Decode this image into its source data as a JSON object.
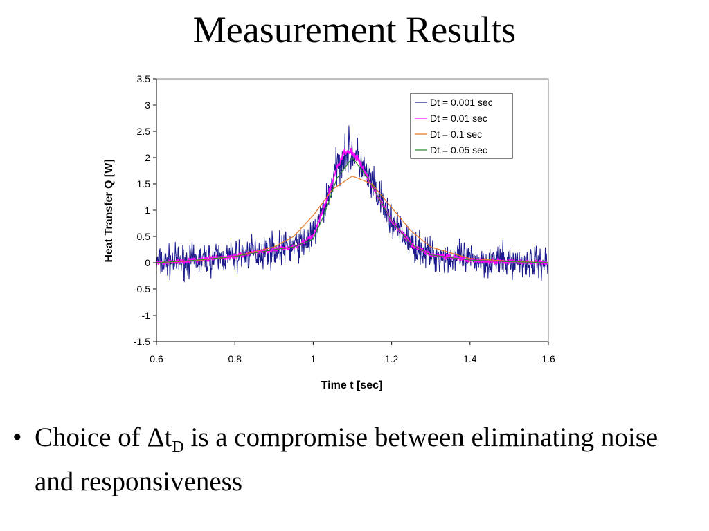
{
  "slide": {
    "title": "Measurement Results",
    "bullet": {
      "marker": "•",
      "pre": "Choice of ",
      "symbol": "Δt",
      "sub": "D",
      "post": " is a compromise between eliminating noise and responsiveness"
    }
  },
  "chart_data": {
    "type": "line",
    "title": "",
    "xlabel": "Time t [sec]",
    "ylabel": "Heat Transfer Q [W]",
    "xlim": [
      0.6,
      1.6
    ],
    "ylim": [
      -1.5,
      3.5
    ],
    "x_ticks": [
      "0.6",
      "0.8",
      "1",
      "1.2",
      "1.4",
      "1.6"
    ],
    "y_ticks": [
      "3.5",
      "3",
      "2.5",
      "2",
      "1.5",
      "1",
      "0.5",
      "0",
      "-0.5",
      "-1",
      "-1.5"
    ],
    "grid": false,
    "legend_position": "top-right",
    "series": [
      {
        "name": "Dt = 0.001 sec",
        "color": "#1a1a8c",
        "noise_amplitude": 0.45,
        "x": [
          0.6,
          0.7,
          0.8,
          0.85,
          0.9,
          0.95,
          1.0,
          1.03,
          1.06,
          1.08,
          1.1,
          1.12,
          1.14,
          1.17,
          1.2,
          1.25,
          1.3,
          1.4,
          1.5,
          1.6
        ],
        "y": [
          0.0,
          0.05,
          0.12,
          0.2,
          0.25,
          0.3,
          0.5,
          1.1,
          1.8,
          2.1,
          2.1,
          1.9,
          1.6,
          1.2,
          0.8,
          0.35,
          0.15,
          0.05,
          0.02,
          0.0
        ]
      },
      {
        "name": "Dt = 0.01 sec",
        "color": "#ff00ff",
        "noise_amplitude": 0.07,
        "x": [
          0.6,
          0.7,
          0.8,
          0.85,
          0.9,
          0.95,
          1.0,
          1.03,
          1.06,
          1.08,
          1.1,
          1.12,
          1.14,
          1.17,
          1.2,
          1.25,
          1.3,
          1.4,
          1.5,
          1.6
        ],
        "y": [
          0.0,
          0.05,
          0.12,
          0.2,
          0.25,
          0.3,
          0.5,
          1.1,
          1.8,
          2.1,
          2.1,
          1.9,
          1.6,
          1.2,
          0.8,
          0.35,
          0.15,
          0.05,
          0.02,
          0.0
        ]
      },
      {
        "name": "Dt = 0.1 sec",
        "color": "#e87722",
        "noise_amplitude": 0,
        "x": [
          0.6,
          0.7,
          0.8,
          0.9,
          0.95,
          1.0,
          1.05,
          1.1,
          1.15,
          1.2,
          1.25,
          1.3,
          1.4,
          1.5,
          1.6
        ],
        "y": [
          0.0,
          0.04,
          0.12,
          0.3,
          0.5,
          0.9,
          1.4,
          1.65,
          1.5,
          1.05,
          0.6,
          0.3,
          0.08,
          0.03,
          0.0
        ]
      },
      {
        "name": "Dt = 0.05 sec",
        "color": "#2e8b2e",
        "noise_amplitude": 0,
        "x": [
          0.6,
          0.7,
          0.8,
          0.9,
          0.95,
          1.0,
          1.03,
          1.06,
          1.1,
          1.14,
          1.17,
          1.2,
          1.25,
          1.3,
          1.4,
          1.5,
          1.6
        ],
        "y": [
          0.0,
          0.05,
          0.12,
          0.25,
          0.3,
          0.45,
          0.95,
          1.6,
          2.0,
          1.6,
          1.2,
          0.8,
          0.35,
          0.15,
          0.05,
          0.02,
          0.0
        ]
      }
    ]
  }
}
